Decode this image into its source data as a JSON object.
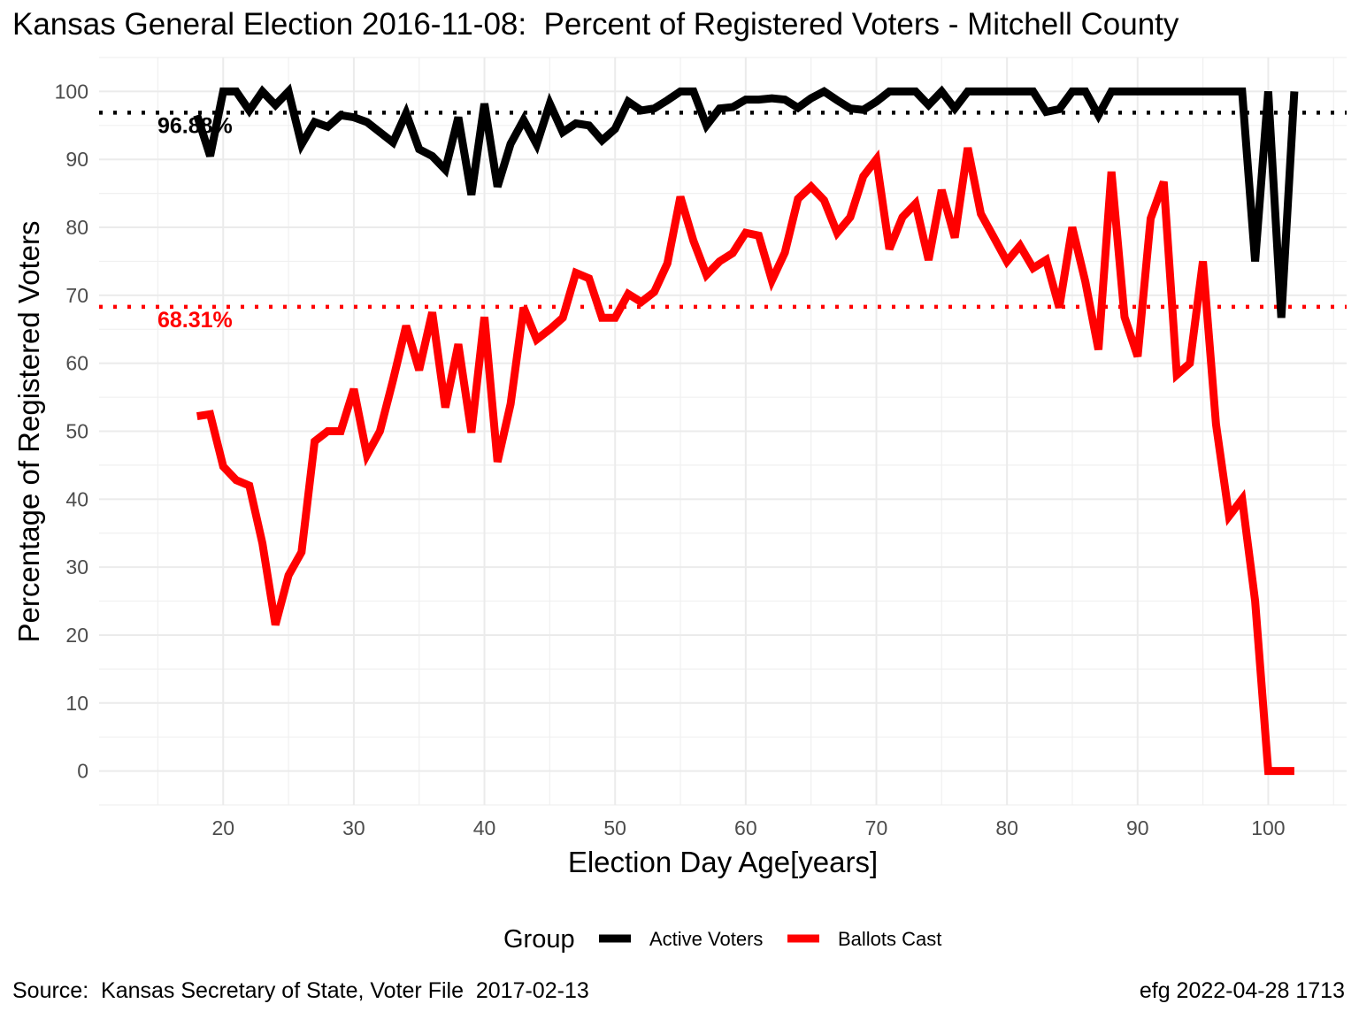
{
  "title": "Kansas General Election 2016-11-08:  Percent of Registered Voters - Mitchell County",
  "source": "Source:  Kansas Secretary of State, Voter File  2017-02-13",
  "stamp": "efg 2022-04-28 1713",
  "chart_data": {
    "type": "line",
    "xlabel": "Election Day Age[years]",
    "ylabel": "Percentage of Registered Voters",
    "xlim": [
      10.5,
      106
    ],
    "ylim": [
      -5,
      105
    ],
    "xticks": [
      20,
      30,
      40,
      50,
      60,
      70,
      80,
      90,
      100
    ],
    "yticks": [
      0,
      10,
      20,
      30,
      40,
      50,
      60,
      70,
      80,
      90,
      100
    ],
    "grid": true,
    "legend": {
      "position": "bottom",
      "title": "Group",
      "entries": [
        {
          "label": "Active Voters",
          "color": "#000000"
        },
        {
          "label": "Ballots Cast",
          "color": "#ff0000"
        }
      ]
    },
    "reference_lines": [
      {
        "y": 96.88,
        "label": "96.88%",
        "color": "#000000"
      },
      {
        "y": 68.31,
        "label": "68.31%",
        "color": "#ff0000"
      }
    ],
    "series": [
      {
        "name": "Active Voters",
        "color": "#000000",
        "x": [
          18,
          19,
          20,
          21,
          22,
          23,
          24,
          25,
          26,
          27,
          28,
          29,
          30,
          31,
          32,
          33,
          34,
          35,
          36,
          37,
          38,
          39,
          40,
          41,
          42,
          43,
          44,
          45,
          46,
          47,
          48,
          49,
          50,
          51,
          52,
          53,
          54,
          55,
          56,
          57,
          58,
          59,
          60,
          61,
          62,
          63,
          64,
          65,
          66,
          67,
          68,
          69,
          70,
          71,
          72,
          73,
          74,
          75,
          76,
          77,
          78,
          79,
          80,
          81,
          82,
          83,
          84,
          85,
          86,
          87,
          88,
          89,
          90,
          91,
          92,
          93,
          94,
          95,
          96,
          97,
          98,
          99,
          100,
          101,
          102
        ],
        "y": [
          96.5,
          90.5,
          100,
          100,
          97.2,
          100,
          98,
          100,
          92.2,
          95.5,
          94.8,
          96.5,
          96.2,
          95.5,
          94,
          92.5,
          96.8,
          91.5,
          90.5,
          88.5,
          96.2,
          84.8,
          98.2,
          86,
          92.3,
          95.8,
          92.2,
          98.2,
          94,
          95.3,
          95,
          92.8,
          94.5,
          98.5,
          97.2,
          97.5,
          98.7,
          100,
          100,
          95,
          97.5,
          97.7,
          98.8,
          98.8,
          99,
          98.8,
          97.6,
          99,
          100,
          98.7,
          97.5,
          97.3,
          98.5,
          100,
          100,
          100,
          98,
          100,
          97.5,
          100,
          100,
          100,
          100,
          100,
          100,
          97,
          97.4,
          100,
          100,
          96.5,
          100,
          100,
          100,
          100,
          100,
          100,
          100,
          100,
          100,
          100,
          100,
          75,
          100,
          66.7,
          100
        ]
      },
      {
        "name": "Ballots Cast",
        "color": "#ff0000",
        "x": [
          18,
          19,
          20,
          21,
          22,
          23,
          24,
          25,
          26,
          27,
          28,
          29,
          30,
          31,
          32,
          33,
          34,
          35,
          36,
          37,
          38,
          39,
          40,
          41,
          42,
          43,
          44,
          45,
          46,
          47,
          48,
          49,
          50,
          51,
          52,
          53,
          54,
          55,
          56,
          57,
          58,
          59,
          60,
          61,
          62,
          63,
          64,
          65,
          66,
          67,
          68,
          69,
          70,
          71,
          72,
          73,
          74,
          75,
          76,
          77,
          78,
          79,
          80,
          81,
          82,
          83,
          84,
          85,
          86,
          87,
          88,
          89,
          90,
          91,
          92,
          93,
          94,
          95,
          96,
          97,
          98,
          99,
          100,
          101,
          102
        ],
        "y": [
          52.2,
          52.5,
          44.8,
          42.8,
          42,
          33.5,
          21.5,
          28.8,
          32.2,
          48.5,
          50,
          50,
          56.2,
          46.5,
          50,
          57.5,
          65.5,
          59,
          67.5,
          53.5,
          62.8,
          49.8,
          66.8,
          45.5,
          54,
          68.2,
          63.5,
          65,
          66.7,
          73.3,
          72.5,
          66.7,
          66.7,
          70.2,
          69,
          70.5,
          74.7,
          84.5,
          78,
          73,
          75,
          76.2,
          79.2,
          78.8,
          72.2,
          76.3,
          84.2,
          86,
          84,
          79.2,
          81.5,
          87.5,
          90,
          76.8,
          81.5,
          83.5,
          75.2,
          85.5,
          78.5,
          91.7,
          82,
          78.5,
          75,
          77.3,
          74,
          75.2,
          68.2,
          80,
          72,
          62,
          88.2,
          66.8,
          61,
          81.3,
          86.7,
          58.3,
          60,
          75,
          51,
          37.5,
          40,
          25,
          0,
          0,
          0
        ]
      }
    ]
  }
}
